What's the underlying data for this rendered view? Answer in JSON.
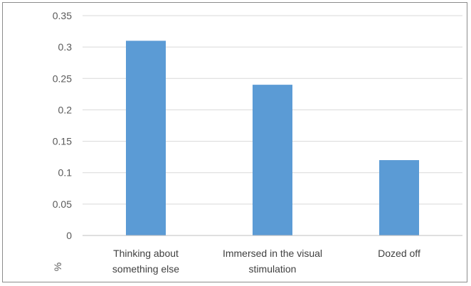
{
  "chart_data": {
    "type": "bar",
    "categories": [
      [
        "Thinking about",
        "something else"
      ],
      [
        "Immersed in the visual",
        "stimulation"
      ],
      [
        "Dozed off"
      ]
    ],
    "values": [
      0.31,
      0.24,
      0.12
    ],
    "title": "",
    "xlabel": "",
    "ylabel": "%",
    "ylim": [
      0,
      0.35
    ],
    "yticks": [
      "0",
      "0.05",
      "0.1",
      "0.15",
      "0.2",
      "0.25",
      "0.3",
      "0.35"
    ],
    "grid": true,
    "bar_color": "#5b9bd5",
    "gridline_color": "#d9d9d9",
    "axis_color": "#bfbfbf"
  }
}
